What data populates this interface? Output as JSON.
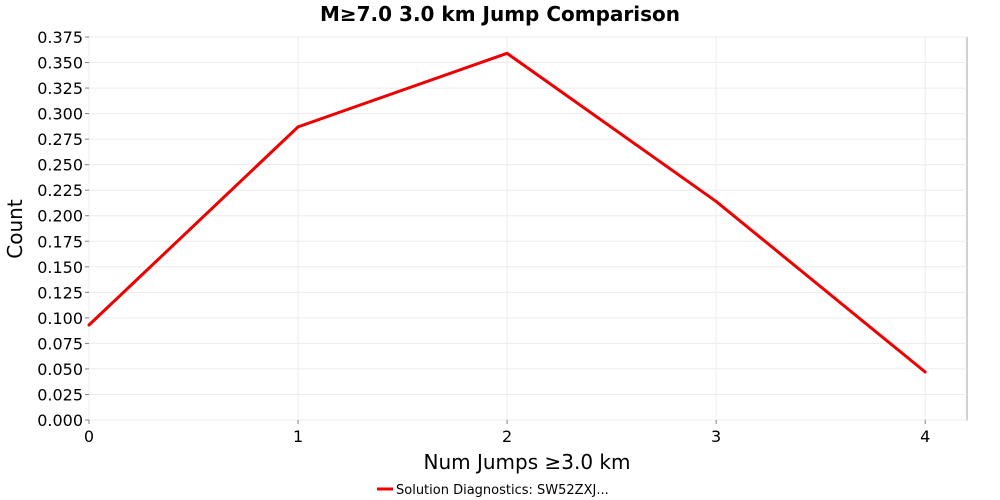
{
  "chart_data": {
    "type": "line",
    "title": "M≥7.0 3.0 km Jump Comparison",
    "xlabel": "Num Jumps ≥3.0 km",
    "ylabel": "Count",
    "xlim": [
      0,
      4.2
    ],
    "ylim": [
      0,
      0.375
    ],
    "x_ticks": [
      "0",
      "1",
      "2",
      "3",
      "4"
    ],
    "x_tick_values": [
      0,
      1,
      2,
      3,
      4
    ],
    "y_ticks": [
      "0.000",
      "0.025",
      "0.050",
      "0.075",
      "0.100",
      "0.125",
      "0.150",
      "0.175",
      "0.200",
      "0.225",
      "0.250",
      "0.275",
      "0.300",
      "0.325",
      "0.350",
      "0.375"
    ],
    "y_tick_values": [
      0,
      0.025,
      0.05,
      0.075,
      0.1,
      0.125,
      0.15,
      0.175,
      0.2,
      0.225,
      0.25,
      0.275,
      0.3,
      0.325,
      0.35,
      0.375
    ],
    "grid": true,
    "legend_position": "bottom-center",
    "series": [
      {
        "name": "Solution Diagnostics: SW52ZXJ...",
        "color": "#ee0000",
        "x": [
          0,
          1,
          2,
          3,
          4
        ],
        "y": [
          0.093,
          0.287,
          0.359,
          0.214,
          0.047
        ]
      }
    ]
  }
}
